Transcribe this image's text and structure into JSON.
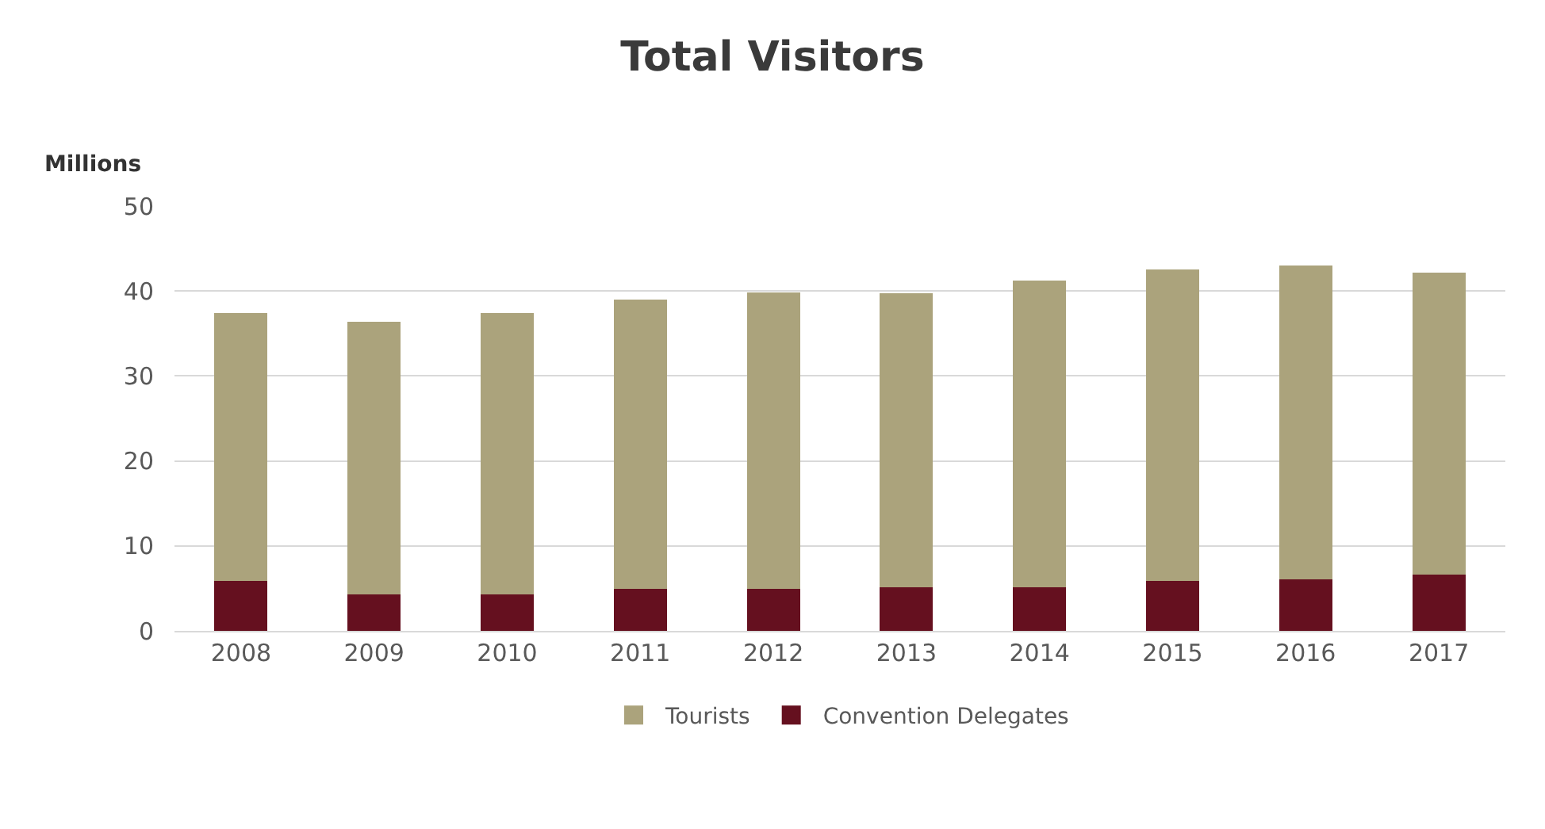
{
  "chart_data": {
    "type": "bar",
    "title": "Total Visitors",
    "ylabel": "Millions",
    "stacked": true,
    "categories": [
      "2008",
      "2009",
      "2010",
      "2011",
      "2012",
      "2013",
      "2014",
      "2015",
      "2016",
      "2017"
    ],
    "series": [
      {
        "name": "Convention Delegates",
        "color": "#65101f",
        "values": [
          5.9,
          4.3,
          4.3,
          4.9,
          4.9,
          5.1,
          5.1,
          5.9,
          6.1,
          6.6
        ]
      },
      {
        "name": "Tourists",
        "color": "#aba37c",
        "values": [
          31.5,
          32.1,
          33.1,
          34.1,
          34.9,
          34.6,
          36.1,
          36.6,
          36.9,
          35.6
        ]
      }
    ],
    "ylim": [
      0,
      50
    ],
    "yticks": [
      0,
      10,
      20,
      30,
      40,
      50
    ],
    "grid": "y",
    "legend": "bottom"
  }
}
